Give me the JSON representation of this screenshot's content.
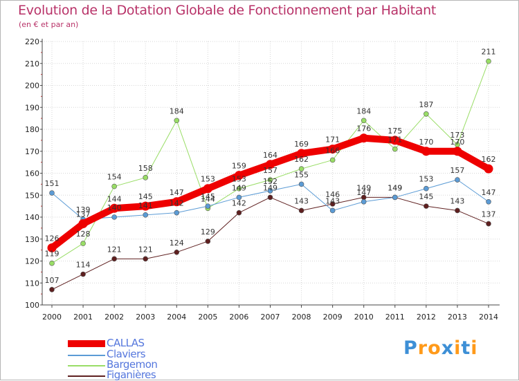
{
  "title": "Evolution de la Dotation Globale de Fonctionnement par Habitant",
  "subtitle": "(en € et par an)",
  "logo": {
    "letters": [
      "P",
      "r",
      "o",
      "x",
      "i",
      "t",
      "i"
    ],
    "colors": [
      "#3d8fd6",
      "#ff9a1a",
      "#ff9a1a",
      "#3d8fd6",
      "#ff9a1a",
      "#3d8fd6",
      "#ff9a1a"
    ]
  },
  "chart_data": {
    "type": "line",
    "title": "Evolution de la Dotation Globale de Fonctionnement par Habitant",
    "ylabel": "(en € et par an)",
    "xlabel": "",
    "categories": [
      "2000",
      "2001",
      "2002",
      "2003",
      "2004",
      "2005",
      "2006",
      "2007",
      "2008",
      "2009",
      "2010",
      "2011",
      "2012",
      "2013",
      "2014"
    ],
    "ylim": [
      100,
      220
    ],
    "yticks": [
      100,
      110,
      120,
      130,
      140,
      150,
      160,
      170,
      180,
      190,
      200,
      210,
      220
    ],
    "grid": true,
    "legend_position": "bottom-left",
    "series": [
      {
        "name": "Figanières",
        "color": "#5e1f1f",
        "width": 1,
        "values": [
          107,
          114,
          121,
          121,
          124,
          129,
          142,
          149,
          143,
          146,
          149,
          149,
          145,
          143,
          137
        ]
      },
      {
        "name": "Bargemon",
        "color": "#99dd66",
        "width": 1,
        "values": [
          119,
          128,
          154,
          158,
          184,
          144,
          153,
          157,
          162,
          166,
          184,
          171,
          187,
          173,
          211
        ]
      },
      {
        "name": "Claviers",
        "color": "#5b9bd5",
        "width": 1,
        "values": [
          151,
          139,
          140,
          141,
          142,
          145,
          149,
          152,
          155,
          143,
          147,
          149,
          153,
          157,
          147
        ]
      },
      {
        "name": "CALLAS",
        "color": "#ee0000",
        "width": 10,
        "values": [
          126,
          137,
          144,
          145,
          147,
          153,
          159,
          164,
          169,
          171,
          176,
          175,
          170,
          170,
          162
        ]
      }
    ],
    "legend": [
      {
        "name": "CALLAS",
        "color": "#ee0000",
        "width": 10
      },
      {
        "name": "Claviers",
        "color": "#5b9bd5",
        "width": 2
      },
      {
        "name": "Bargemon",
        "color": "#99dd66",
        "width": 2
      },
      {
        "name": "Figanières",
        "color": "#5e1f1f",
        "width": 2
      }
    ]
  }
}
